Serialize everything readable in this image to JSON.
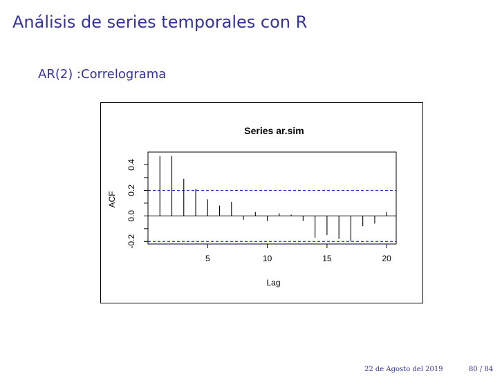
{
  "slide": {
    "title": "Análisis de series temporales con R",
    "subtitle": "AR(2) :Correlograma",
    "footer_date": "22 de Agosto del 2019",
    "footer_page": "80 / 84"
  },
  "colors": {
    "title": "#33339a",
    "ci_line": "#1f2fd0",
    "bars": "#000000"
  },
  "chart_data": {
    "type": "bar",
    "title": "Series ar.sim",
    "xlabel": "Lag",
    "ylabel": "ACF",
    "xlim": [
      0,
      20.8
    ],
    "ylim": [
      -0.22,
      0.5
    ],
    "xticks": [
      "5",
      "10",
      "15",
      "20"
    ],
    "yticks": [
      "-0.2",
      "0.0",
      "0.2",
      "0.4"
    ],
    "lags": [
      1,
      2,
      3,
      4,
      5,
      6,
      7,
      8,
      9,
      10,
      11,
      12,
      13,
      14,
      15,
      16,
      17,
      18,
      19,
      20
    ],
    "values": [
      0.47,
      0.47,
      0.29,
      0.21,
      0.13,
      0.08,
      0.11,
      -0.03,
      0.03,
      -0.04,
      0.02,
      0.01,
      -0.04,
      -0.17,
      -0.15,
      -0.18,
      -0.2,
      -0.08,
      -0.06,
      0.03
    ],
    "ci": 0.2,
    "grid": false
  }
}
